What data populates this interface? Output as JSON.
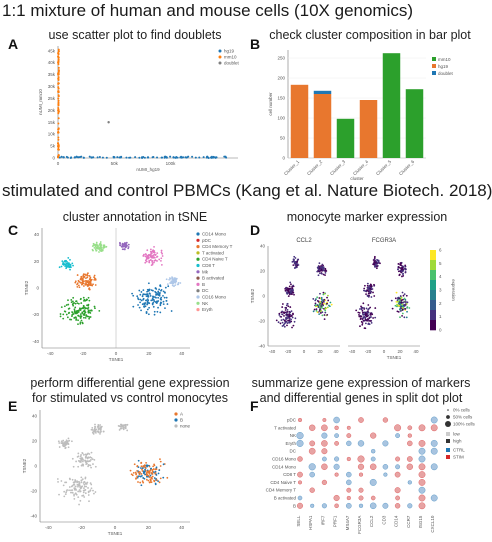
{
  "headings": {
    "top": "1:1 mixture of human and mouse cells (10X genomics)",
    "middle": "stimulated and control PBMCs (Kang et al. Nature Biotech. 2018)"
  },
  "panels": {
    "A": {
      "letter": "A",
      "title": "use scatter plot to find doublets"
    },
    "B": {
      "letter": "B",
      "title": "check cluster composition in bar plot"
    },
    "C": {
      "letter": "C",
      "title": "cluster annotation in tSNE"
    },
    "D": {
      "letter": "D",
      "title": "monocyte marker expression"
    },
    "E": {
      "letter": "E",
      "title_line1": "perform differential gene expression",
      "title_line2": "for stimulated vs control monocytes"
    },
    "F": {
      "letter": "F",
      "title_line1": "summarize gene expression of markers",
      "title_line2": "and differential genes in split dot plot"
    }
  },
  "chart_data": [
    {
      "panel": "A",
      "type": "scatter",
      "xlabel": "nUMI_hg19",
      "ylabel": "nUMI_mm10",
      "x_ticks": [
        "0",
        "50k",
        "100k"
      ],
      "y_ticks": [
        "0",
        "5k",
        "10k",
        "15k",
        "20k",
        "25k",
        "30k",
        "35k",
        "40k",
        "45k"
      ],
      "xlim": [
        0,
        160000
      ],
      "ylim": [
        0,
        47000
      ],
      "legend": [
        "hg19",
        "mm10",
        "doublet"
      ],
      "legend_position": "top-right",
      "colors": {
        "hg19": "#1f77b4",
        "mm10": "#ff7f0e",
        "doublet": "#7f7f7f"
      },
      "series": [
        {
          "name": "hg19",
          "x": [
            5000,
            15000,
            30000,
            50000,
            80000,
            110000,
            140000
          ],
          "y": [
            300,
            250,
            200,
            300,
            250,
            200,
            150
          ]
        },
        {
          "name": "mm10",
          "x": [
            200,
            300,
            250,
            350,
            300,
            200,
            250
          ],
          "y": [
            5000,
            12000,
            20000,
            28000,
            35000,
            40000,
            44000
          ]
        },
        {
          "name": "doublet",
          "x": [
            45000
          ],
          "y": [
            15000
          ]
        }
      ]
    },
    {
      "panel": "B",
      "type": "bar",
      "xlabel": "cluster",
      "ylabel": "cell number",
      "categories": [
        "Cluster_1",
        "Cluster_2",
        "Cluster_3",
        "Cluster_4",
        "Cluster_5",
        "Cluster_6"
      ],
      "y_ticks": [
        "0",
        "50",
        "100",
        "150",
        "200",
        "250"
      ],
      "ylim": [
        0,
        270
      ],
      "legend": [
        "mm10",
        "hg19",
        "doublet"
      ],
      "legend_position": "top-right",
      "colors": {
        "mm10": "#2ca02c",
        "hg19": "#e8772e",
        "doublet": "#1f77b4"
      },
      "series": [
        {
          "name": "hg19",
          "values": [
            183,
            160,
            0,
            145,
            0,
            0
          ]
        },
        {
          "name": "doublet",
          "values": [
            0,
            8,
            0,
            0,
            0,
            0
          ]
        },
        {
          "name": "mm10",
          "values": [
            0,
            0,
            98,
            0,
            262,
            172
          ]
        }
      ]
    },
    {
      "panel": "C",
      "type": "scatter",
      "xlabel": "TSNE1",
      "ylabel": "TSNE2",
      "x_ticks": [
        "-40",
        "-20",
        "0",
        "20",
        "40"
      ],
      "y_ticks": [
        "-40",
        "-20",
        "0",
        "20",
        "40"
      ],
      "xlim": [
        -45,
        45
      ],
      "ylim": [
        -45,
        45
      ],
      "legend": [
        "CD14 Mono",
        "pDC",
        "CD4 Memory T",
        "T activated",
        "CD4 Naive T",
        "CD8 T",
        "Mk",
        "B activated",
        "B",
        "DC",
        "CD16 Mono",
        "NK",
        "Eryth"
      ],
      "legend_position": "right",
      "colors": [
        "#1f77b4",
        "#d62728",
        "#e8772e",
        "#bcbd22",
        "#2ca02c",
        "#17becf",
        "#9467bd",
        "#8c564b",
        "#e377c2",
        "#7f7f7f",
        "#aec7e8",
        "#98df8a",
        "#ff9896"
      ],
      "clusters": [
        {
          "name": "CD14 Mono",
          "cx": 22,
          "cy": -8,
          "r": 14
        },
        {
          "name": "CD4 Naive T",
          "cx": -22,
          "cy": -18,
          "r": 14
        },
        {
          "name": "CD4 Memory T",
          "cx": -18,
          "cy": 5,
          "r": 9
        },
        {
          "name": "CD8 T",
          "cx": -30,
          "cy": 18,
          "r": 5
        },
        {
          "name": "B",
          "cx": 22,
          "cy": 24,
          "r": 8
        },
        {
          "name": "NK",
          "cx": -10,
          "cy": 30,
          "r": 6
        },
        {
          "name": "Mk",
          "cx": 5,
          "cy": 32,
          "r": 4
        },
        {
          "name": "CD16 Mono",
          "cx": 35,
          "cy": 5,
          "r": 5
        }
      ]
    },
    {
      "panel": "D",
      "type": "scatter",
      "facets": [
        "CCL2",
        "FCGR3A"
      ],
      "xlabel": "TSNE1",
      "ylabel": "TSNE2",
      "x_ticks": [
        "-40",
        "-20",
        "0",
        "20",
        "40"
      ],
      "y_ticks": [
        "-40",
        "-20",
        "0",
        "20",
        "40"
      ],
      "colorbar_label": "expression",
      "colorbar_ticks": [
        "0",
        "1",
        "2",
        "3",
        "4",
        "5",
        "6"
      ],
      "colorbar_range": [
        0,
        6
      ],
      "colormap": "viridis"
    },
    {
      "panel": "E",
      "type": "scatter",
      "xlabel": "TSNE1",
      "ylabel": "TSNE2",
      "x_ticks": [
        "-40",
        "-20",
        "0",
        "20",
        "40"
      ],
      "y_ticks": [
        "-40",
        "-20",
        "0",
        "20",
        "40"
      ],
      "legend": [
        "A",
        "B",
        "none"
      ],
      "legend_position": "top-right",
      "colors": {
        "A": "#e8772e",
        "B": "#1f77b4",
        "none": "#bdbdbd"
      }
    },
    {
      "panel": "F",
      "type": "heatmap",
      "rows": [
        "pDC",
        "T activated",
        "NK",
        "Eryth",
        "DC",
        "CD16 Mono",
        "CD14 Mono",
        "CD8 T",
        "CD4 Naive T",
        "CD4 Memory T",
        "B activated",
        "B"
      ],
      "columns": [
        "SELL",
        "HSPA1",
        "IRF7",
        "PRF1",
        "MS4A7",
        "FCGR3A",
        "CCL2",
        "CD3",
        "CD14",
        "CCR7",
        "ISG15",
        "CXCL10"
      ],
      "legend_size": [
        "0% cells",
        "50% cells",
        "100% cells"
      ],
      "legend_color": [
        "low",
        "high"
      ],
      "legend_groups": [
        "CTRL",
        "STIM"
      ],
      "colors": {
        "CTRL": "#1f77b4",
        "STIM": "#d62728"
      }
    }
  ]
}
